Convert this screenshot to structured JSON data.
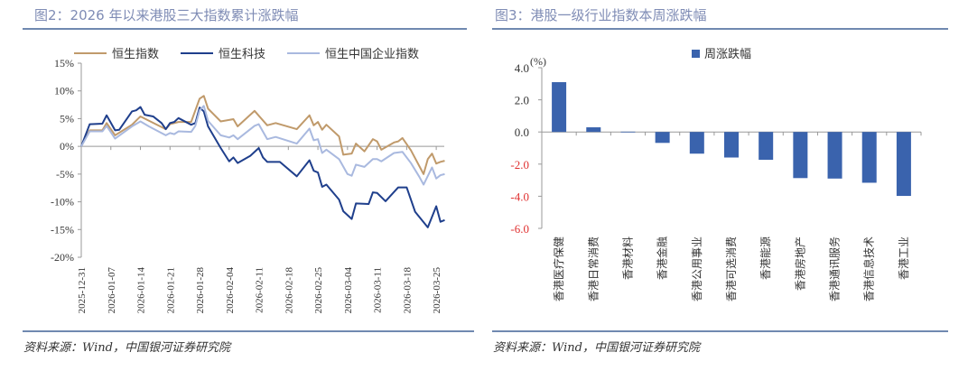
{
  "left_panel": {
    "title": "图2：2026 年以来港股三大指数累计涨跌幅",
    "source": "资料来源：Wind，中国银河证券研究院"
  },
  "right_panel": {
    "title": "图3：港股一级行业指数本周涨跌幅",
    "source": "资料来源：Wind，中国银河证券研究院"
  },
  "chart_data": [
    {
      "type": "line",
      "ylim": [
        -20,
        15
      ],
      "y_ticks": [
        "15%",
        "10%",
        "5%",
        "0%",
        "-5%",
        "-10%",
        "-15%",
        "-20%"
      ],
      "y_tick_values": [
        15,
        10,
        5,
        0,
        -5,
        -10,
        -15,
        -20
      ],
      "x_ticks": [
        "2025-12-31",
        "2026-01-07",
        "2026-01-14",
        "2026-01-21",
        "2026-01-28",
        "2026-02-04",
        "2026-02-11",
        "2026-02-18",
        "2026-02-25",
        "2026-03-04",
        "2026-03-11",
        "2026-03-18",
        "2026-03-25"
      ],
      "legend_position": "top",
      "grid": false,
      "series": [
        {
          "name": "恒生指数",
          "color": "#c09a6b",
          "points": [
            [
              "2025-12-31",
              0
            ],
            [
              "2026-01-02",
              2.9
            ],
            [
              "2026-01-05",
              2.9
            ],
            [
              "2026-01-06",
              4.2
            ],
            [
              "2026-01-08",
              2.0
            ],
            [
              "2026-01-12",
              3.9
            ],
            [
              "2026-01-14",
              5.4
            ],
            [
              "2026-01-20",
              3.1
            ],
            [
              "2026-01-21",
              4.0
            ],
            [
              "2026-01-23",
              4.4
            ],
            [
              "2026-01-26",
              4.4
            ],
            [
              "2026-01-28",
              8.6
            ],
            [
              "2026-01-29",
              9.1
            ],
            [
              "2026-01-30",
              6.8
            ],
            [
              "2026-02-02",
              4.5
            ],
            [
              "2026-02-05",
              4.9
            ],
            [
              "2026-02-06",
              3.6
            ],
            [
              "2026-02-10",
              6.4
            ],
            [
              "2026-02-13",
              3.8
            ],
            [
              "2026-02-15",
              4.2
            ],
            [
              "2026-02-20",
              3.1
            ],
            [
              "2026-02-23",
              5.6
            ],
            [
              "2026-02-24",
              3.8
            ],
            [
              "2026-02-25",
              4.4
            ],
            [
              "2026-02-26",
              3.0
            ],
            [
              "2026-02-27",
              3.9
            ],
            [
              "2026-03-02",
              1.8
            ],
            [
              "2026-03-03",
              -1.5
            ],
            [
              "2026-03-05",
              -1.3
            ],
            [
              "2026-03-06",
              0.5
            ],
            [
              "2026-03-08",
              -0.9
            ],
            [
              "2026-03-10",
              1.3
            ],
            [
              "2026-03-11",
              0.9
            ],
            [
              "2026-03-12",
              -0.6
            ],
            [
              "2026-03-15",
              0.7
            ],
            [
              "2026-03-16",
              0.9
            ],
            [
              "2026-03-17",
              1.5
            ],
            [
              "2026-03-19",
              -0.7
            ],
            [
              "2026-03-22",
              -5.0
            ],
            [
              "2026-03-23",
              -2.3
            ],
            [
              "2026-03-24",
              -1.3
            ],
            [
              "2026-03-25",
              -3.1
            ],
            [
              "2026-03-26",
              -2.8
            ],
            [
              "2026-03-27",
              -2.6
            ]
          ]
        },
        {
          "name": "恒生科技",
          "color": "#1f3f8c",
          "points": [
            [
              "2025-12-31",
              0
            ],
            [
              "2026-01-02",
              4.0
            ],
            [
              "2026-01-05",
              4.1
            ],
            [
              "2026-01-06",
              5.6
            ],
            [
              "2026-01-08",
              2.9
            ],
            [
              "2026-01-09",
              3.0
            ],
            [
              "2026-01-12",
              6.3
            ],
            [
              "2026-01-13",
              6.5
            ],
            [
              "2026-01-14",
              7.1
            ],
            [
              "2026-01-15",
              5.7
            ],
            [
              "2026-01-17",
              5.4
            ],
            [
              "2026-01-19",
              4.2
            ],
            [
              "2026-01-20",
              3.1
            ],
            [
              "2026-01-21",
              4.2
            ],
            [
              "2026-01-22",
              4.4
            ],
            [
              "2026-01-23",
              5.1
            ],
            [
              "2026-01-26",
              3.9
            ],
            [
              "2026-01-27",
              4.2
            ],
            [
              "2026-01-28",
              7.0
            ],
            [
              "2026-01-29",
              6.3
            ],
            [
              "2026-01-30",
              3.6
            ],
            [
              "2026-02-02",
              -0.3
            ],
            [
              "2026-02-03",
              -1.5
            ],
            [
              "2026-02-04",
              -2.7
            ],
            [
              "2026-02-05",
              -2.0
            ],
            [
              "2026-02-06",
              -3.0
            ],
            [
              "2026-02-09",
              -1.7
            ],
            [
              "2026-02-11",
              -0.3
            ],
            [
              "2026-02-12",
              -2.0
            ],
            [
              "2026-02-13",
              -2.8
            ],
            [
              "2026-02-16",
              -2.8
            ],
            [
              "2026-02-20",
              -5.4
            ],
            [
              "2026-02-23",
              -2.5
            ],
            [
              "2026-02-24",
              -4.4
            ],
            [
              "2026-02-25",
              -4.7
            ],
            [
              "2026-02-26",
              -7.3
            ],
            [
              "2026-02-27",
              -6.9
            ],
            [
              "2026-03-02",
              -9.6
            ],
            [
              "2026-03-03",
              -11.7
            ],
            [
              "2026-03-05",
              -13.1
            ],
            [
              "2026-03-06",
              -10.3
            ],
            [
              "2026-03-09",
              -10.4
            ],
            [
              "2026-03-10",
              -8.3
            ],
            [
              "2026-03-11",
              -8.4
            ],
            [
              "2026-03-13",
              -9.9
            ],
            [
              "2026-03-16",
              -7.4
            ],
            [
              "2026-03-18",
              -7.4
            ],
            [
              "2026-03-20",
              -11.8
            ],
            [
              "2026-03-23",
              -14.6
            ],
            [
              "2026-03-25",
              -10.8
            ],
            [
              "2026-03-26",
              -13.6
            ],
            [
              "2026-03-27",
              -13.3
            ]
          ]
        },
        {
          "name": "恒生中国企业指数",
          "color": "#a9b9df",
          "points": [
            [
              "2025-12-31",
              0
            ],
            [
              "2026-01-02",
              2.7
            ],
            [
              "2026-01-05",
              2.7
            ],
            [
              "2026-01-06",
              3.7
            ],
            [
              "2026-01-08",
              1.4
            ],
            [
              "2026-01-12",
              3.6
            ],
            [
              "2026-01-14",
              4.5
            ],
            [
              "2026-01-16",
              3.6
            ],
            [
              "2026-01-20",
              2.0
            ],
            [
              "2026-01-21",
              2.4
            ],
            [
              "2026-01-22",
              2.2
            ],
            [
              "2026-01-23",
              2.7
            ],
            [
              "2026-01-26",
              2.6
            ],
            [
              "2026-01-27",
              3.7
            ],
            [
              "2026-01-28",
              6.5
            ],
            [
              "2026-01-29",
              7.3
            ],
            [
              "2026-01-30",
              4.6
            ],
            [
              "2026-02-02",
              2.0
            ],
            [
              "2026-02-04",
              1.6
            ],
            [
              "2026-02-05",
              2.0
            ],
            [
              "2026-02-06",
              1.3
            ],
            [
              "2026-02-10",
              3.7
            ],
            [
              "2026-02-11",
              4.0
            ],
            [
              "2026-02-13",
              1.3
            ],
            [
              "2026-02-15",
              1.7
            ],
            [
              "2026-02-20",
              0.5
            ],
            [
              "2026-02-23",
              3.2
            ],
            [
              "2026-02-24",
              1.1
            ],
            [
              "2026-02-25",
              1.3
            ],
            [
              "2026-02-26",
              -1.2
            ],
            [
              "2026-02-27",
              -0.6
            ],
            [
              "2026-03-02",
              -2.3
            ],
            [
              "2026-03-04",
              -5.0
            ],
            [
              "2026-03-05",
              -5.3
            ],
            [
              "2026-03-06",
              -3.3
            ],
            [
              "2026-03-08",
              -3.7
            ],
            [
              "2026-03-10",
              -2.3
            ],
            [
              "2026-03-11",
              -2.3
            ],
            [
              "2026-03-12",
              -2.7
            ],
            [
              "2026-03-15",
              -1.2
            ],
            [
              "2026-03-17",
              -1.0
            ],
            [
              "2026-03-19",
              -3.0
            ],
            [
              "2026-03-21",
              -5.5
            ],
            [
              "2026-03-22",
              -6.9
            ],
            [
              "2026-03-24",
              -3.8
            ],
            [
              "2026-03-25",
              -5.8
            ],
            [
              "2026-03-26",
              -5.2
            ],
            [
              "2026-03-27",
              -5.0
            ]
          ]
        }
      ]
    },
    {
      "type": "bar",
      "unit_label": "(%)",
      "ylim": [
        -6,
        4
      ],
      "y_ticks": [
        "4.0",
        "2.0",
        "0.0",
        "-2.0",
        "-4.0",
        "-6.0"
      ],
      "y_tick_values": [
        4,
        2,
        0,
        -2,
        -4,
        -6
      ],
      "negative_tick_color": "#e03030",
      "legend_position": "top",
      "grid": false,
      "categories": [
        "香港医疗保健",
        "香港日常消费",
        "香港材料",
        "香港金融",
        "香港公用事业",
        "香港可选消费",
        "香港能源",
        "香港房地产",
        "香港通讯服务",
        "香港信息技术",
        "香港工业"
      ],
      "series": [
        {
          "name": "周涨跌幅",
          "color": "#3a63ad",
          "values": [
            3.1,
            0.29,
            0.02,
            -0.68,
            -1.35,
            -1.59,
            -1.73,
            -2.87,
            -2.9,
            -3.16,
            -3.98
          ]
        }
      ]
    }
  ]
}
